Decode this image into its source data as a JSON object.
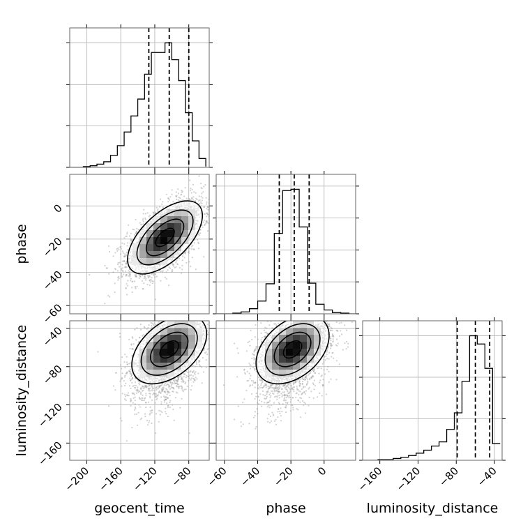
{
  "chart_data": {
    "type": "corner",
    "parameters": [
      "geocent_time",
      "phase",
      "luminosity_distance"
    ],
    "axis_labels": {
      "geocent_time": "geocent_time",
      "phase": "phase",
      "luminosity_distance": "luminosity_distance"
    },
    "ranges": {
      "geocent_time": [
        -220,
        -56
      ],
      "phase": [
        -65,
        19
      ],
      "luminosity_distance": [
        -178,
        -32
      ]
    },
    "ticks": {
      "geocent_time": [
        -200,
        -160,
        -120,
        -80
      ],
      "phase": [
        -60,
        -40,
        -20,
        0
      ],
      "luminosity_distance": [
        -160,
        -120,
        -80,
        -40
      ]
    },
    "tick_labels": {
      "geocent_time": [
        "−200",
        "−160",
        "−120",
        "−80"
      ],
      "phase": [
        "−60",
        "−40",
        "−20",
        "0"
      ],
      "luminosity_distance": [
        "−160",
        "−120",
        "−80",
        "−40"
      ]
    },
    "quantiles": {
      "geocent_time": [
        -127,
        -103,
        -80
      ],
      "phase": [
        -27,
        -18,
        -9
      ],
      "luminosity_distance": [
        -79,
        -60,
        -45
      ]
    },
    "histograms": {
      "geocent_time": {
        "edges": [
          -220,
          -212,
          -204,
          -196,
          -188,
          -180,
          -172,
          -164,
          -156,
          -148,
          -140,
          -132,
          -124,
          -116,
          -108,
          -100,
          -92,
          -84,
          -76,
          -68,
          -60
        ],
        "counts": [
          0,
          0,
          1,
          2,
          4,
          7,
          15,
          27,
          44,
          64,
          85,
          116,
          143,
          143,
          155,
          134,
          108,
          68,
          33,
          11,
          1
        ]
      },
      "phase": {
        "edges": [
          -65,
          -60,
          -55,
          -50,
          -45,
          -40,
          -35,
          -30,
          -25,
          -20,
          -15,
          -10,
          -5,
          0,
          5,
          10,
          15,
          20
        ],
        "counts": [
          0,
          0,
          1,
          3,
          8,
          20,
          47,
          126,
          193,
          195,
          136,
          48,
          15,
          6,
          2,
          1,
          0
        ],
        "ytick_counts": [
          0,
          50,
          100,
          150,
          200
        ]
      },
      "luminosity_distance": {
        "edges": [
          -178,
          -170,
          -162,
          -154,
          -146,
          -138,
          -130,
          -122,
          -114,
          -106,
          -98,
          -90,
          -82,
          -74,
          -66,
          -58,
          -50,
          -42,
          -34
        ],
        "counts": [
          0,
          0,
          1,
          1,
          3,
          5,
          8,
          12,
          17,
          24,
          31,
          52,
          80,
          133,
          210,
          196,
          155,
          28
        ]
      }
    },
    "scatter_2d": [
      {
        "x": "geocent_time",
        "y": "phase",
        "mean": [
          -108,
          -19
        ],
        "sd": [
          22,
          11
        ],
        "corr": 0.6,
        "n_points": 3200
      },
      {
        "x": "geocent_time",
        "y": "luminosity_distance",
        "mean": [
          -103,
          -62
        ],
        "sd": [
          22,
          18
        ],
        "corr": 0.45,
        "n_points": 3200
      },
      {
        "x": "phase",
        "y": "luminosity_distance",
        "mean": [
          -19,
          -62
        ],
        "sd": [
          11,
          18
        ],
        "corr": 0.4,
        "n_points": 3200
      }
    ],
    "grid": true
  },
  "colors": {
    "line": "#000000",
    "points": "#9a9a9a",
    "grid": "#b0b0b0"
  }
}
